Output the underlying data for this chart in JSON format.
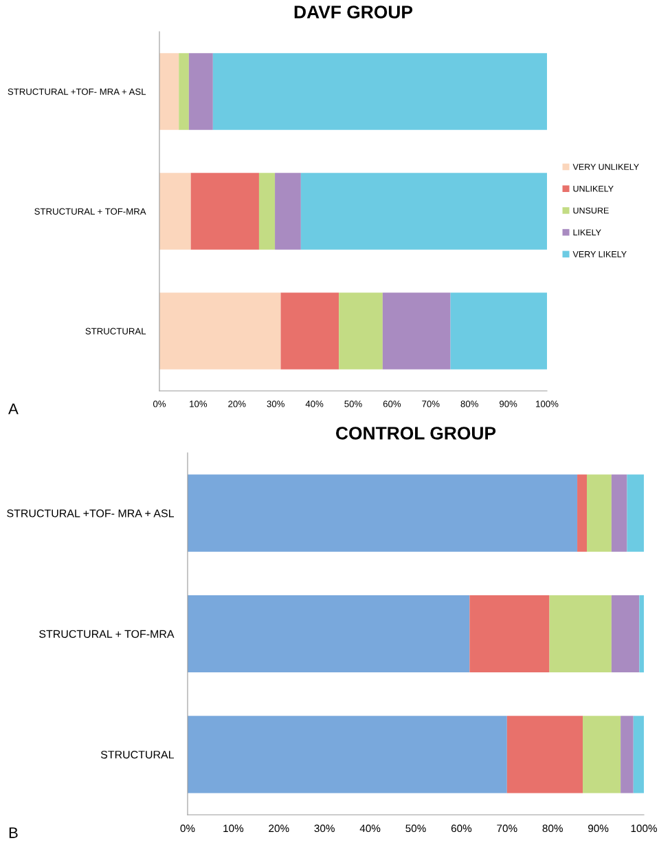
{
  "chart_data": [
    {
      "type": "bar",
      "orientation": "horizontal",
      "stacked": true,
      "title": "DAVF GROUP",
      "categories": [
        "STRUCTURAL +TOF- MRA + ASL",
        "STRUCTURAL + TOF-MRA",
        "STRUCTURAL"
      ],
      "series": [
        {
          "name": "VERY UNLIKELY",
          "color": "#fbd6bc",
          "values": [
            5.0,
            8.1,
            31.3
          ]
        },
        {
          "name": "UNLIKELY",
          "color": "#e8716b",
          "values": [
            0,
            17.6,
            15.0
          ]
        },
        {
          "name": "UNSURE",
          "color": "#c3dc84",
          "values": [
            2.6,
            4.1,
            11.3
          ]
        },
        {
          "name": "LIKELY",
          "color": "#a98bc1",
          "values": [
            6.2,
            6.7,
            17.5
          ]
        },
        {
          "name": "VERY LIKELY",
          "color": "#6ccbe3",
          "values": [
            86.2,
            63.5,
            24.9
          ]
        }
      ],
      "xlim": [
        0,
        100
      ],
      "xticks": [
        {
          "value": 0,
          "label": "0%"
        },
        {
          "value": 10,
          "label": "10%"
        },
        {
          "value": 20,
          "label": "20%"
        },
        {
          "value": 30,
          "label": "30%"
        },
        {
          "value": 40,
          "label": "40%"
        },
        {
          "value": 50,
          "label": "50%"
        },
        {
          "value": 60,
          "label": "60%"
        },
        {
          "value": 70,
          "label": "70%"
        },
        {
          "value": 80,
          "label": "80%"
        },
        {
          "value": 90,
          "label": "90%"
        },
        {
          "value": 100,
          "label": "100%"
        }
      ],
      "legend": "right",
      "grid": false,
      "annotations": [
        "A"
      ]
    },
    {
      "type": "bar",
      "orientation": "horizontal",
      "stacked": true,
      "title": "CONTROL GROUP",
      "categories": [
        "STRUCTURAL +TOF- MRA + ASL",
        "STRUCTURAL + TOF-MRA",
        "STRUCTURAL"
      ],
      "series": [
        {
          "color": "#79a8dc",
          "values": [
            85.4,
            61.8,
            70.0
          ]
        },
        {
          "color": "#e8716b",
          "values": [
            2.1,
            17.5,
            16.6
          ]
        },
        {
          "color": "#c3dc84",
          "values": [
            5.4,
            13.6,
            8.3
          ]
        },
        {
          "color": "#a98bc1",
          "values": [
            3.4,
            6.1,
            2.8
          ]
        },
        {
          "color": "#6ccbe3",
          "values": [
            3.7,
            1.0,
            2.3
          ]
        }
      ],
      "xlim": [
        0,
        100
      ],
      "xticks": [
        {
          "value": 0,
          "label": "0%"
        },
        {
          "value": 10,
          "label": "10%"
        },
        {
          "value": 20,
          "label": "20%"
        },
        {
          "value": 30,
          "label": "30%"
        },
        {
          "value": 40,
          "label": "40%"
        },
        {
          "value": 50,
          "label": "50%"
        },
        {
          "value": 60,
          "label": "60%"
        },
        {
          "value": 70,
          "label": "70%"
        },
        {
          "value": 80,
          "label": "80%"
        },
        {
          "value": 90,
          "label": "90%"
        },
        {
          "value": 100,
          "label": "100%"
        }
      ],
      "legend": false,
      "grid": false,
      "annotations": [
        "B"
      ]
    }
  ]
}
